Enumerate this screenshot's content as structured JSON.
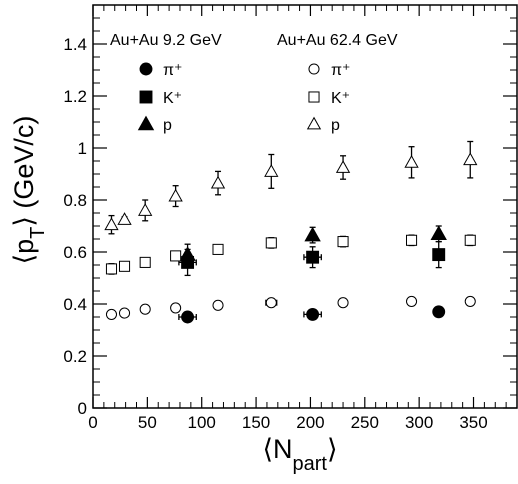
{
  "chart_data": {
    "type": "scatter",
    "xlabel": "⟨N",
    "xlabel_sub": "part",
    "xlabel_close": "⟩",
    "ylabel": "⟨p",
    "ylabel_sub": "T",
    "ylabel_close": "⟩ (GeV/c)",
    "xlim": [
      0,
      390
    ],
    "ylim": [
      0,
      1.55
    ],
    "xticks": [
      0,
      50,
      100,
      150,
      200,
      250,
      300,
      350
    ],
    "yticks": [
      0,
      0.2,
      0.4,
      0.6,
      0.8,
      1,
      1.2,
      1.4
    ],
    "ytick_labels": [
      "0",
      "0.2",
      "0.4",
      "0.6",
      "0.8",
      "1",
      "1.2",
      "1.4"
    ],
    "grid": false,
    "legend": {
      "position": "top",
      "groups": [
        {
          "title": "Au+Au 9.2 GeV",
          "filled": true
        },
        {
          "title": "Au+Au 62.4 GeV",
          "filled": false
        }
      ],
      "labels": [
        "π⁺",
        "K⁺",
        "p"
      ]
    },
    "series": [
      {
        "name": "π⁺",
        "energy": "9.2 GeV",
        "marker": "circle",
        "filled": true,
        "points": [
          {
            "x": 87,
            "y": 0.35,
            "xerr": 8,
            "yerr": 0.005
          },
          {
            "x": 202,
            "y": 0.36,
            "xerr": 8,
            "yerr": 0.005
          },
          {
            "x": 318,
            "y": 0.37,
            "xerr": 0,
            "yerr": 0.005
          }
        ]
      },
      {
        "name": "K⁺",
        "energy": "9.2 GeV",
        "marker": "square",
        "filled": true,
        "points": [
          {
            "x": 87,
            "y": 0.56,
            "xerr": 8,
            "yerr": 0.05
          },
          {
            "x": 202,
            "y": 0.58,
            "xerr": 8,
            "yerr": 0.04
          },
          {
            "x": 318,
            "y": 0.59,
            "xerr": 0,
            "yerr": 0.05
          }
        ]
      },
      {
        "name": "p",
        "energy": "9.2 GeV",
        "marker": "triangle",
        "filled": true,
        "points": [
          {
            "x": 87,
            "y": 0.59,
            "xerr": 0,
            "yerr": 0.04
          },
          {
            "x": 202,
            "y": 0.665,
            "xerr": 0,
            "yerr": 0.03
          },
          {
            "x": 318,
            "y": 0.67,
            "xerr": 0,
            "yerr": 0.03
          }
        ]
      },
      {
        "name": "π⁺",
        "energy": "62.4 GeV",
        "marker": "circle",
        "filled": false,
        "points": [
          {
            "x": 17,
            "y": 0.36,
            "xerr": 0,
            "yerr": 0.005
          },
          {
            "x": 29,
            "y": 0.365,
            "xerr": 0,
            "yerr": 0.005
          },
          {
            "x": 48,
            "y": 0.38,
            "xerr": 0,
            "yerr": 0.005
          },
          {
            "x": 76,
            "y": 0.385,
            "xerr": 0,
            "yerr": 0.005
          },
          {
            "x": 115,
            "y": 0.395,
            "xerr": 0,
            "yerr": 0.005
          },
          {
            "x": 164,
            "y": 0.405,
            "xerr": 5,
            "yerr": 0.005
          },
          {
            "x": 230,
            "y": 0.405,
            "xerr": 0,
            "yerr": 0.005
          },
          {
            "x": 293,
            "y": 0.41,
            "xerr": 0,
            "yerr": 0.005
          },
          {
            "x": 347,
            "y": 0.41,
            "xerr": 0,
            "yerr": 0.005
          }
        ]
      },
      {
        "name": "K⁺",
        "energy": "62.4 GeV",
        "marker": "square",
        "filled": false,
        "points": [
          {
            "x": 17,
            "y": 0.535,
            "xerr": 0,
            "yerr": 0.02
          },
          {
            "x": 29,
            "y": 0.545,
            "xerr": 0,
            "yerr": 0.015
          },
          {
            "x": 48,
            "y": 0.56,
            "xerr": 0,
            "yerr": 0.01
          },
          {
            "x": 76,
            "y": 0.585,
            "xerr": 0,
            "yerr": 0.01
          },
          {
            "x": 115,
            "y": 0.61,
            "xerr": 0,
            "yerr": 0.01
          },
          {
            "x": 164,
            "y": 0.635,
            "xerr": 4,
            "yerr": 0.02
          },
          {
            "x": 230,
            "y": 0.64,
            "xerr": 0,
            "yerr": 0.02
          },
          {
            "x": 293,
            "y": 0.645,
            "xerr": 0,
            "yerr": 0.02
          },
          {
            "x": 347,
            "y": 0.645,
            "xerr": 0,
            "yerr": 0.02
          }
        ]
      },
      {
        "name": "p",
        "energy": "62.4 GeV",
        "marker": "triangle",
        "filled": false,
        "points": [
          {
            "x": 17,
            "y": 0.705,
            "xerr": 0,
            "yerr": 0.035
          },
          {
            "x": 29,
            "y": 0.725,
            "xerr": 0,
            "yerr": 0.01
          },
          {
            "x": 48,
            "y": 0.76,
            "xerr": 0,
            "yerr": 0.04
          },
          {
            "x": 76,
            "y": 0.815,
            "xerr": 0,
            "yerr": 0.04
          },
          {
            "x": 115,
            "y": 0.865,
            "xerr": 0,
            "yerr": 0.045
          },
          {
            "x": 164,
            "y": 0.91,
            "xerr": 0,
            "yerr": 0.065
          },
          {
            "x": 230,
            "y": 0.925,
            "xerr": 0,
            "yerr": 0.045
          },
          {
            "x": 293,
            "y": 0.945,
            "xerr": 0,
            "yerr": 0.06
          },
          {
            "x": 347,
            "y": 0.955,
            "xerr": 0,
            "yerr": 0.07
          }
        ]
      }
    ]
  }
}
